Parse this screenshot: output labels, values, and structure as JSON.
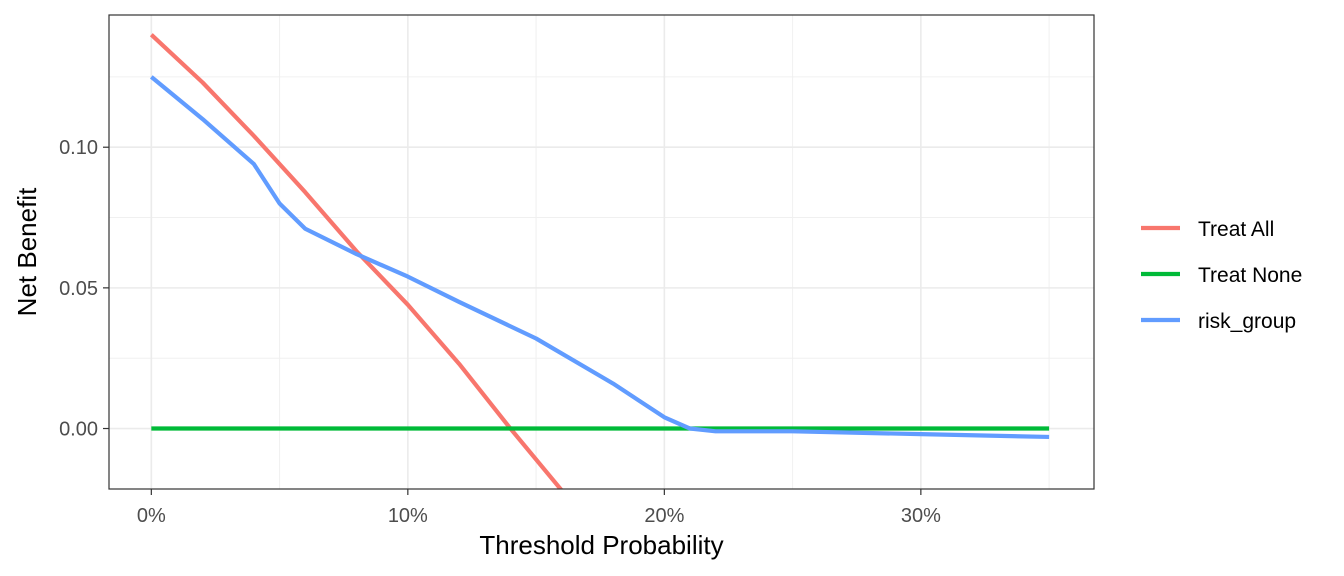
{
  "chart_data": {
    "type": "line",
    "xlabel": "Threshold Probability",
    "ylabel": "Net Benefit",
    "xlim": [
      -0.0165,
      0.3675
    ],
    "ylim": [
      -0.0215,
      0.147
    ],
    "x_ticks": [
      0,
      0.1,
      0.2,
      0.3
    ],
    "x_tick_labels": [
      "0%",
      "10%",
      "20%",
      "30%"
    ],
    "y_ticks": [
      0,
      0.05,
      0.1
    ],
    "y_tick_labels": [
      "0.00",
      "0.05",
      "0.10"
    ],
    "grid": true,
    "legend_position": "right",
    "series": [
      {
        "name": "Treat All",
        "color": "#F8766D",
        "x": [
          0,
          0.02,
          0.04,
          0.06,
          0.08,
          0.1,
          0.12,
          0.14,
          0.16
        ],
        "y": [
          0.14,
          0.123,
          0.104,
          0.084,
          0.063,
          0.044,
          0.023,
          0.0,
          -0.022
        ]
      },
      {
        "name": "Treat None",
        "color": "#00BA38",
        "x": [
          0,
          0.35
        ],
        "y": [
          0,
          0
        ]
      },
      {
        "name": "risk_group",
        "color": "#619CFF",
        "x": [
          0,
          0.02,
          0.04,
          0.05,
          0.06,
          0.08,
          0.1,
          0.12,
          0.15,
          0.18,
          0.2,
          0.21,
          0.22,
          0.25,
          0.3,
          0.35
        ],
        "y": [
          0.125,
          0.11,
          0.094,
          0.08,
          0.071,
          0.062,
          0.054,
          0.045,
          0.032,
          0.016,
          0.004,
          0.0,
          -0.001,
          -0.001,
          -0.002,
          -0.003
        ]
      }
    ]
  }
}
